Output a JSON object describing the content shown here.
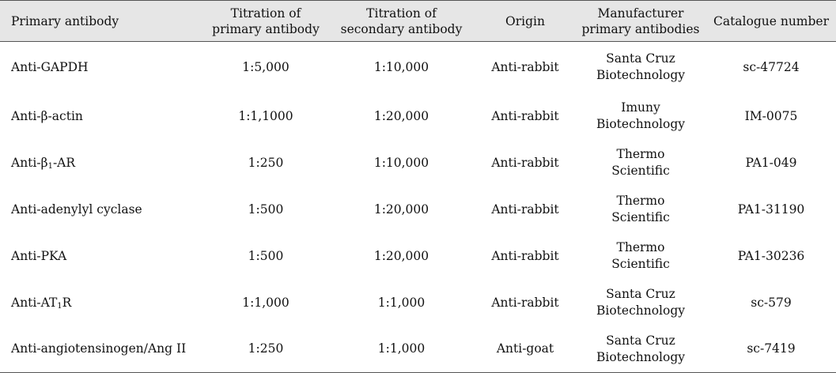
{
  "table": {
    "headers": [
      [
        "Primary antibody"
      ],
      [
        "Titration of",
        "primary antibody"
      ],
      [
        "Titration of",
        "secondary antibody"
      ],
      [
        "Origin"
      ],
      [
        "Manufacturer",
        "primary antibodies"
      ],
      [
        "Catalogue number"
      ]
    ],
    "rows": [
      {
        "antibody_prefix": "Anti-GAPDH",
        "antibody_sub": "",
        "antibody_suffix": "",
        "primary_titration": "1:5,000",
        "secondary_titration": "1:10,000",
        "origin": "Anti-rabbit",
        "manufacturer": [
          "Santa Cruz",
          "Biotechnology"
        ],
        "catalogue": "sc-47724"
      },
      {
        "antibody_prefix": "Anti-β-actin",
        "antibody_sub": "",
        "antibody_suffix": "",
        "primary_titration": "1:1,1000",
        "secondary_titration": "1:20,000",
        "origin": "Anti-rabbit",
        "manufacturer": [
          "Imuny",
          "Biotechnology"
        ],
        "catalogue": "IM-0075"
      },
      {
        "antibody_prefix": "Anti-β",
        "antibody_sub": "1",
        "antibody_suffix": "-AR",
        "primary_titration": "1:250",
        "secondary_titration": "1:10,000",
        "origin": "Anti-rabbit",
        "manufacturer": [
          "Thermo",
          "Scientific"
        ],
        "catalogue": "PA1-049"
      },
      {
        "antibody_prefix": "Anti-adenylyl cyclase",
        "antibody_sub": "",
        "antibody_suffix": "",
        "primary_titration": "1:500",
        "secondary_titration": "1:20,000",
        "origin": "Anti-rabbit",
        "manufacturer": [
          "Thermo",
          "Scientific"
        ],
        "catalogue": "PA1-31190"
      },
      {
        "antibody_prefix": "Anti-PKA",
        "antibody_sub": "",
        "antibody_suffix": "",
        "primary_titration": "1:500",
        "secondary_titration": "1:20,000",
        "origin": "Anti-rabbit",
        "manufacturer": [
          "Thermo",
          "Scientific"
        ],
        "catalogue": "PA1-30236"
      },
      {
        "antibody_prefix": "Anti-AT",
        "antibody_sub": "1",
        "antibody_suffix": "R",
        "primary_titration": "1:1,000",
        "secondary_titration": "1:1,000",
        "origin": "Anti-rabbit",
        "manufacturer": [
          "Santa Cruz",
          "Biotechnology"
        ],
        "catalogue": "sc-579"
      },
      {
        "antibody_prefix": "Anti-angiotensinogen/Ang II",
        "antibody_sub": "",
        "antibody_suffix": "",
        "primary_titration": "1:250",
        "secondary_titration": "1:1,000",
        "origin": "Anti-goat",
        "manufacturer": [
          "Santa Cruz",
          "Biotechnology"
        ],
        "catalogue": "sc-7419"
      }
    ]
  }
}
